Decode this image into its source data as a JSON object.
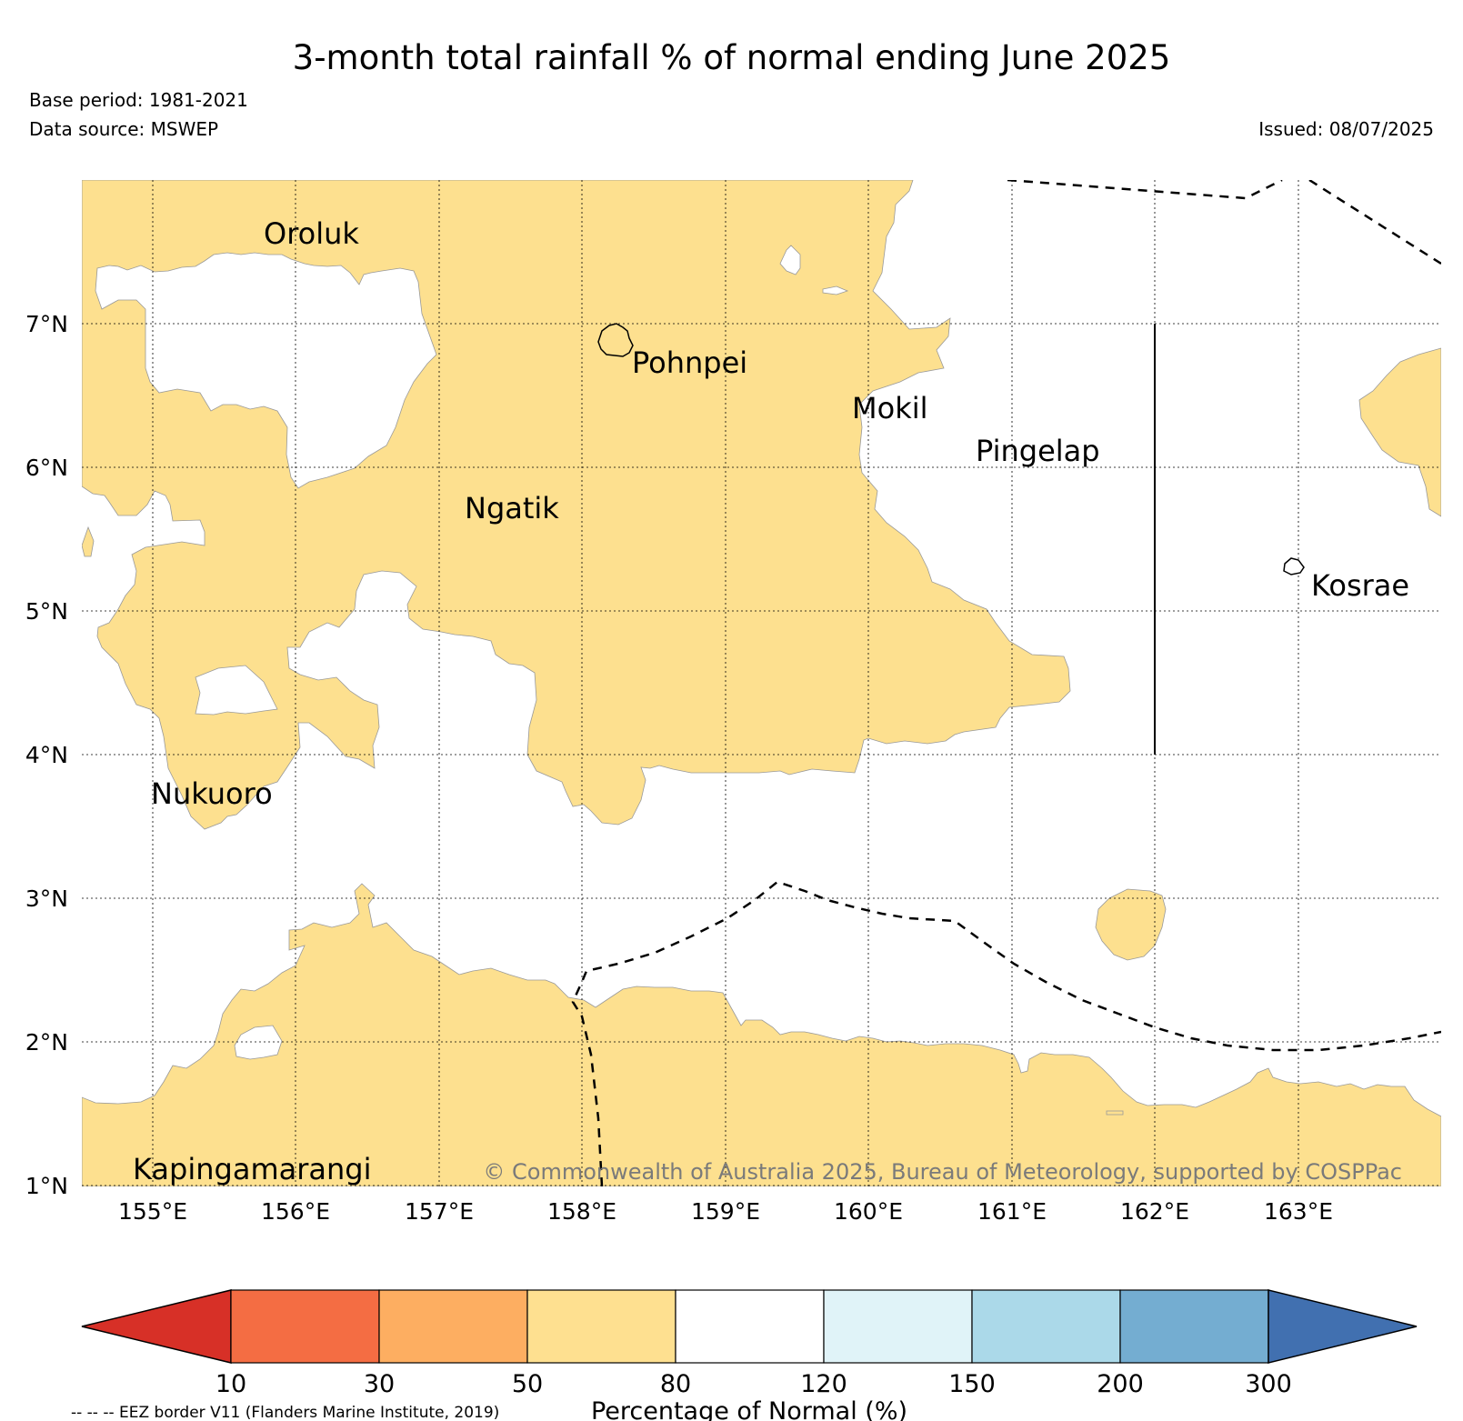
{
  "header": {
    "title": "3-month total rainfall % of normal ending June 2025",
    "base_period": "Base period: 1981-2021",
    "data_source": "Data source: MSWEP",
    "issued": "Issued: 08/07/2025"
  },
  "map": {
    "extent": {
      "lon_min": 154.5,
      "lon_max": 164.0,
      "lat_min": 1.0,
      "lat_max": 8.0
    },
    "gridlines": "dotted",
    "lat_labels": [
      "7°N",
      "6°N",
      "5°N",
      "4°N",
      "3°N",
      "2°N",
      "1°N"
    ],
    "lon_labels": [
      "155°E",
      "156°E",
      "157°E",
      "158°E",
      "159°E",
      "160°E",
      "161°E",
      "162°E",
      "163°E"
    ],
    "dominant_category": "50-80",
    "places": [
      {
        "name": "Oroluk",
        "lon": 155.75,
        "lat": 7.7
      },
      {
        "name": "Pohnpei",
        "lon": 158.25,
        "lat": 6.9
      },
      {
        "name": "Mokil",
        "lon": 159.8,
        "lat": 6.55
      },
      {
        "name": "Pingelap",
        "lon": 160.7,
        "lat": 6.2
      },
      {
        "name": "Ngatik",
        "lon": 157.15,
        "lat": 5.8
      },
      {
        "name": "Kosrae",
        "lon": 163.0,
        "lat": 5.3
      },
      {
        "name": "Nukuoro",
        "lon": 154.95,
        "lat": 3.85
      },
      {
        "name": "Kapingamarangi",
        "lon": 154.85,
        "lat": 1.1
      }
    ],
    "copyright": "© Commonwealth of Australia 2025, Bureau of Meteorology, supported by COSPPac",
    "colors": {
      "fill_50_80": "#fde08f",
      "land_outline": "#000000",
      "border": "#000000"
    }
  },
  "colorbar": {
    "label": "Percentage of Normal (%)",
    "ticks": [
      "10",
      "30",
      "50",
      "80",
      "120",
      "150",
      "200",
      "300"
    ],
    "under_color": "#d73027",
    "over_color": "#4170b0",
    "segment_colors": [
      "#f46d43",
      "#fdae61",
      "#fee090",
      "#ffffff",
      "#e0f3f8",
      "#abd9e9",
      "#74add1"
    ]
  },
  "footnote": "-- -- -- EEZ border V11 (Flanders Marine Institute, 2019)"
}
